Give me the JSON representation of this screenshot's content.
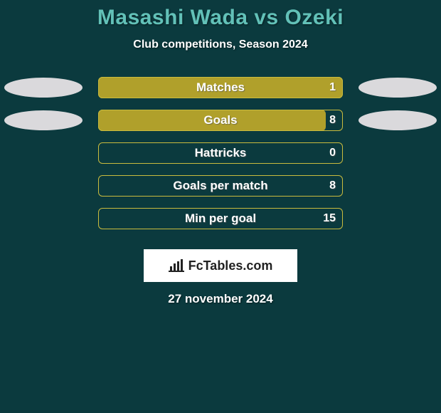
{
  "title": "Masashi Wada vs Ozeki",
  "subtitle": "Club competitions, Season 2024",
  "date": "27 november 2024",
  "logo_text": "FcTables.com",
  "colors": {
    "background": "#0b3a3e",
    "bar_fill": "#b0a02b",
    "bar_border": "#c9bb3e",
    "ellipse_left": "#e6e1e5",
    "ellipse_right": "#e6e1e5",
    "title": "#62c1b8",
    "text": "#ffffff"
  },
  "bar_wrap_width": 344,
  "rows": [
    {
      "label": "Matches",
      "value": "1",
      "fill_pct": 100,
      "show_left_ellipse": true,
      "show_right_ellipse": true
    },
    {
      "label": "Goals",
      "value": "8",
      "fill_pct": 93,
      "show_left_ellipse": true,
      "show_right_ellipse": true
    },
    {
      "label": "Hattricks",
      "value": "0",
      "fill_pct": 0,
      "show_left_ellipse": false,
      "show_right_ellipse": false
    },
    {
      "label": "Goals per match",
      "value": "8",
      "fill_pct": 0,
      "show_left_ellipse": false,
      "show_right_ellipse": false
    },
    {
      "label": "Min per goal",
      "value": "15",
      "fill_pct": 0,
      "show_left_ellipse": false,
      "show_right_ellipse": false
    }
  ]
}
